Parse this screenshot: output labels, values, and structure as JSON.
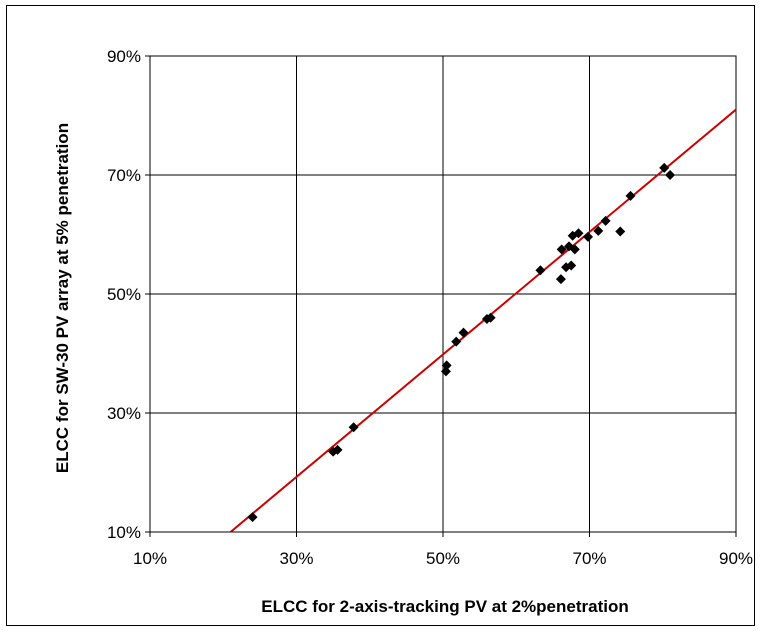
{
  "chart_data": {
    "type": "scatter",
    "title": "",
    "xlabel": "ELCC for 2-axis-tracking PV at 2%penetration",
    "ylabel": "ELCC for SW-30 PV array at 5% penetration",
    "xlim": [
      0.1,
      0.9
    ],
    "ylim": [
      0.1,
      0.9
    ],
    "x_ticks": [
      {
        "value": 0.1,
        "label": "10%"
      },
      {
        "value": 0.3,
        "label": "30%"
      },
      {
        "value": 0.5,
        "label": "50%"
      },
      {
        "value": 0.7,
        "label": "70%"
      },
      {
        "value": 0.9,
        "label": "90%"
      }
    ],
    "y_ticks": [
      {
        "value": 0.1,
        "label": "10%"
      },
      {
        "value": 0.3,
        "label": "30%"
      },
      {
        "value": 0.5,
        "label": "50%"
      },
      {
        "value": 0.7,
        "label": "70%"
      },
      {
        "value": 0.9,
        "label": "90%"
      }
    ],
    "grid": true,
    "legend": "none",
    "marker_color": "#000000",
    "trendline_color": "#cc0000",
    "trendline": {
      "x": [
        0.21,
        0.9
      ],
      "y": [
        0.1,
        0.81
      ]
    },
    "points": [
      {
        "x": 0.24,
        "y": 0.125
      },
      {
        "x": 0.35,
        "y": 0.235
      },
      {
        "x": 0.356,
        "y": 0.238
      },
      {
        "x": 0.378,
        "y": 0.276
      },
      {
        "x": 0.504,
        "y": 0.37
      },
      {
        "x": 0.505,
        "y": 0.38
      },
      {
        "x": 0.518,
        "y": 0.42
      },
      {
        "x": 0.528,
        "y": 0.435
      },
      {
        "x": 0.56,
        "y": 0.458
      },
      {
        "x": 0.565,
        "y": 0.46
      },
      {
        "x": 0.633,
        "y": 0.54
      },
      {
        "x": 0.661,
        "y": 0.525
      },
      {
        "x": 0.662,
        "y": 0.575
      },
      {
        "x": 0.668,
        "y": 0.545
      },
      {
        "x": 0.672,
        "y": 0.58
      },
      {
        "x": 0.675,
        "y": 0.548
      },
      {
        "x": 0.677,
        "y": 0.598
      },
      {
        "x": 0.68,
        "y": 0.575
      },
      {
        "x": 0.685,
        "y": 0.602
      },
      {
        "x": 0.698,
        "y": 0.596
      },
      {
        "x": 0.712,
        "y": 0.606
      },
      {
        "x": 0.722,
        "y": 0.623
      },
      {
        "x": 0.742,
        "y": 0.605
      },
      {
        "x": 0.756,
        "y": 0.665
      },
      {
        "x": 0.802,
        "y": 0.712
      },
      {
        "x": 0.81,
        "y": 0.7
      }
    ]
  }
}
